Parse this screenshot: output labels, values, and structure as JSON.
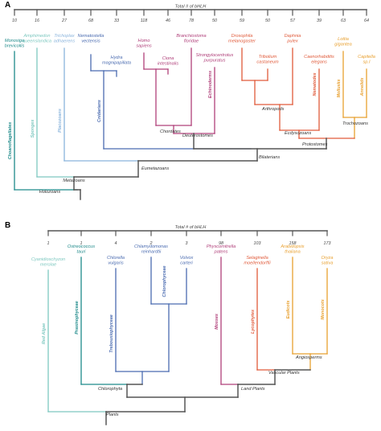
{
  "colors": {
    "bar": "#555555",
    "text": "#444444",
    "teal": "#1e8a8a",
    "mint": "#7ec8c0",
    "sky": "#8ab4dc",
    "blue": "#4a6bb0",
    "magenta": "#b0407a",
    "red": "#e05a3a",
    "orange": "#e8a030"
  },
  "panel_a": {
    "letter": "A",
    "header": "Total # of bHLH",
    "taxa": [
      {
        "count": "10",
        "name": [
          "Monosiga",
          "brevicollis"
        ],
        "color": "teal",
        "group": "Choanoflagellates"
      },
      {
        "count": "16",
        "name": [
          "Amphimedon",
          "queenslandica"
        ],
        "color": "mint",
        "group": "Sponges"
      },
      {
        "count": "27",
        "name": [
          "Trichoplax",
          "adhaerens"
        ],
        "color": "sky",
        "group": "Placozoans"
      },
      {
        "count": "68",
        "name": [
          "Nematostella",
          "vectensis"
        ],
        "color": "blue",
        "group": ""
      },
      {
        "count": "33",
        "name": [
          "Hydra",
          "magnipapillata"
        ],
        "color": "blue",
        "group": "Cnidarians"
      },
      {
        "count": "118",
        "name": [
          "Homo",
          "sapiens"
        ],
        "color": "magenta",
        "group": ""
      },
      {
        "count": "46",
        "name": [
          "Ciona",
          "intestinalis"
        ],
        "color": "magenta",
        "group": ""
      },
      {
        "count": "78",
        "name": [
          "Branchiostoma",
          "floridae"
        ],
        "color": "magenta",
        "group": ""
      },
      {
        "count": "50",
        "name": [
          "Strongylocentrotus",
          "purpuratus"
        ],
        "color": "magenta",
        "group": "Echinoderms"
      },
      {
        "count": "59",
        "name": [
          "Drosophila",
          "melanogaster"
        ],
        "color": "red",
        "group": ""
      },
      {
        "count": "50",
        "name": [
          "Tribolium",
          "castaneum"
        ],
        "color": "red",
        "group": ""
      },
      {
        "count": "57",
        "name": [
          "Daphnia",
          "pulex"
        ],
        "color": "red",
        "group": ""
      },
      {
        "count": "39",
        "name": [
          "Caenorhabditis",
          "elegans"
        ],
        "color": "red",
        "group": "Nematodes"
      },
      {
        "count": "63",
        "name": [
          "Lottia",
          "gigantea"
        ],
        "color": "orange",
        "group": "Mollusks"
      },
      {
        "count": "64",
        "name": [
          "Capitella",
          "sp.I"
        ],
        "color": "orange",
        "group": "Annelids"
      }
    ],
    "nodes": {
      "chordates": "Chordates",
      "deuterostomes": "Deuterostomes",
      "arthropods": "Arthropods",
      "ecdysozoans": "Ecdysozoans",
      "trochozoans": "Trochozoans",
      "protostomes": "Protostomes",
      "bilaterians": "Bilaterians",
      "eumetazoans": "Eumetazoans",
      "metazoans": "Metazoans",
      "holozoans": "Holozoans"
    }
  },
  "panel_b": {
    "letter": "B",
    "header": "Total # of bHLH",
    "taxa": [
      {
        "count": "1",
        "name": [
          "Cyanidioschyzon",
          "merolae"
        ],
        "color": "mint",
        "group": "Red Algae"
      },
      {
        "count": "1",
        "name": [
          "Ostreococcus",
          "tauri"
        ],
        "color": "teal",
        "group": "Prasinophyceae"
      },
      {
        "count": "4",
        "name": [
          "Chlorella",
          "vulgaris"
        ],
        "color": "blue",
        "group": "Trebouxiophyceae"
      },
      {
        "count": "2",
        "name": [
          "Chlamydomonas",
          "reinhardtii"
        ],
        "color": "blue",
        "group": ""
      },
      {
        "count": "3",
        "name": [
          "Volvox",
          "carteri"
        ],
        "color": "blue",
        "group": "Chlorophyceae"
      },
      {
        "count": "98",
        "name": [
          "Physcomitrella",
          "patens"
        ],
        "color": "magenta",
        "group": "Mosses"
      },
      {
        "count": "103",
        "name": [
          "Selaginella",
          "moellendorffii"
        ],
        "color": "red",
        "group": "Lycophytes"
      },
      {
        "count": "158",
        "name": [
          "Arabidopsis",
          "thaliana"
        ],
        "color": "orange",
        "group": "Eudicots"
      },
      {
        "count": "173",
        "name": [
          "Oryza",
          "sativa"
        ],
        "color": "orange",
        "group": "Monocots"
      }
    ],
    "nodes": {
      "chlorophyta": "Chlorophyta",
      "angiosperms": "Angiosperms",
      "vascular_plants": "Vascular Plants",
      "land_plants": "Land Plants",
      "plants": "Plants"
    }
  }
}
